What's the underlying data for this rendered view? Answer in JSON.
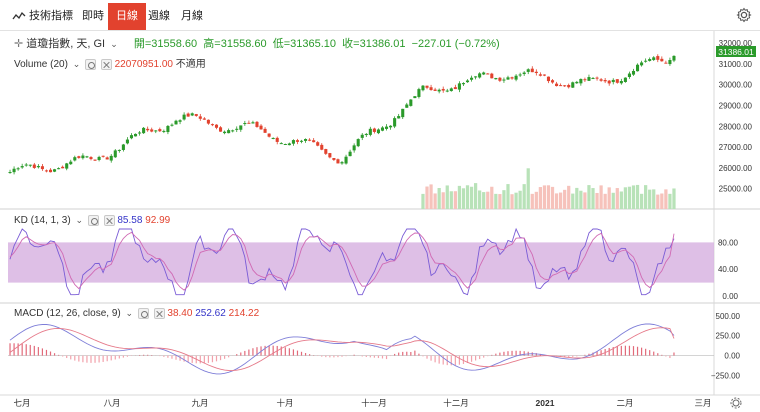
{
  "toolbar": {
    "tools_label": "技術指標",
    "intraday": "即時",
    "daily": "日線",
    "weekly": "週線",
    "monthly": "月線"
  },
  "legend": {
    "title": "道瓊指數, 天, GI",
    "open_label": "開=31558.60",
    "high_label": "高=31558.60",
    "low_label": "低=31365.10",
    "close_label": "收=31386.01",
    "change_label": "−227.01 (−0.72%)",
    "volume_title": "Volume (20)",
    "volume_value": "22070951.00",
    "volume_na": "不適用",
    "kd_title": "KD (14, 1, 3)",
    "kd_k": "85.58",
    "kd_d": "92.99",
    "macd_title": "MACD (12, 26, close, 9)",
    "macd_hist": "38.40",
    "macd_line": "252.62",
    "macd_signal": "214.22",
    "last_price_tag": "31386.01"
  },
  "colors": {
    "up": "#2a9a2a",
    "down": "#e2422e",
    "accent_active": "#e2422e",
    "k_line": "#7a5cd6",
    "d_line": "#d06ab4",
    "kd_band": "#d8b4e2",
    "macd_line": "#7e7ed8",
    "signal_line": "#e67a8a"
  },
  "chart_data": [
    {
      "type": "candlestick",
      "title": "道瓊指數, 天, GI",
      "price_axis_ticks": [
        32000,
        31000,
        30000,
        29000,
        28000,
        27000,
        26000,
        25000
      ],
      "x_axis_labels": [
        "七月",
        "八月",
        "九月",
        "十月",
        "十一月",
        "十二月",
        "2021",
        "二月",
        "三月"
      ],
      "last_close": 31386.01,
      "ylim": [
        24500,
        32200
      ],
      "monthly_anchors": [
        {
          "month": "七月",
          "approx_close": 25800
        },
        {
          "month": "八月",
          "approx_close": 26400
        },
        {
          "month": "九月",
          "approx_close": 28400
        },
        {
          "month": "十月",
          "approx_close": 27800
        },
        {
          "month": "十一月",
          "approx_close": 26500
        },
        {
          "month": "十二月",
          "approx_close": 29700
        },
        {
          "month": "2021",
          "approx_close": 30600
        },
        {
          "month": "二月",
          "approx_close": 30000
        },
        {
          "month": "三月",
          "approx_close": 31400
        }
      ]
    },
    {
      "type": "line",
      "title": "KD (14, 1, 3)",
      "y_axis_ticks": [
        80,
        40,
        0
      ],
      "band": [
        20,
        80
      ],
      "series": [
        {
          "name": "K",
          "last": 85.58
        },
        {
          "name": "D",
          "last": 92.99
        }
      ]
    },
    {
      "type": "line",
      "title": "MACD (12, 26, close, 9)",
      "y_axis_ticks": [
        500,
        250,
        0,
        -250
      ],
      "ylim": [
        -320,
        560
      ],
      "series": [
        {
          "name": "Histogram",
          "last": 38.4
        },
        {
          "name": "MACD",
          "last": 252.62
        },
        {
          "name": "Signal",
          "last": 214.22
        }
      ]
    }
  ]
}
